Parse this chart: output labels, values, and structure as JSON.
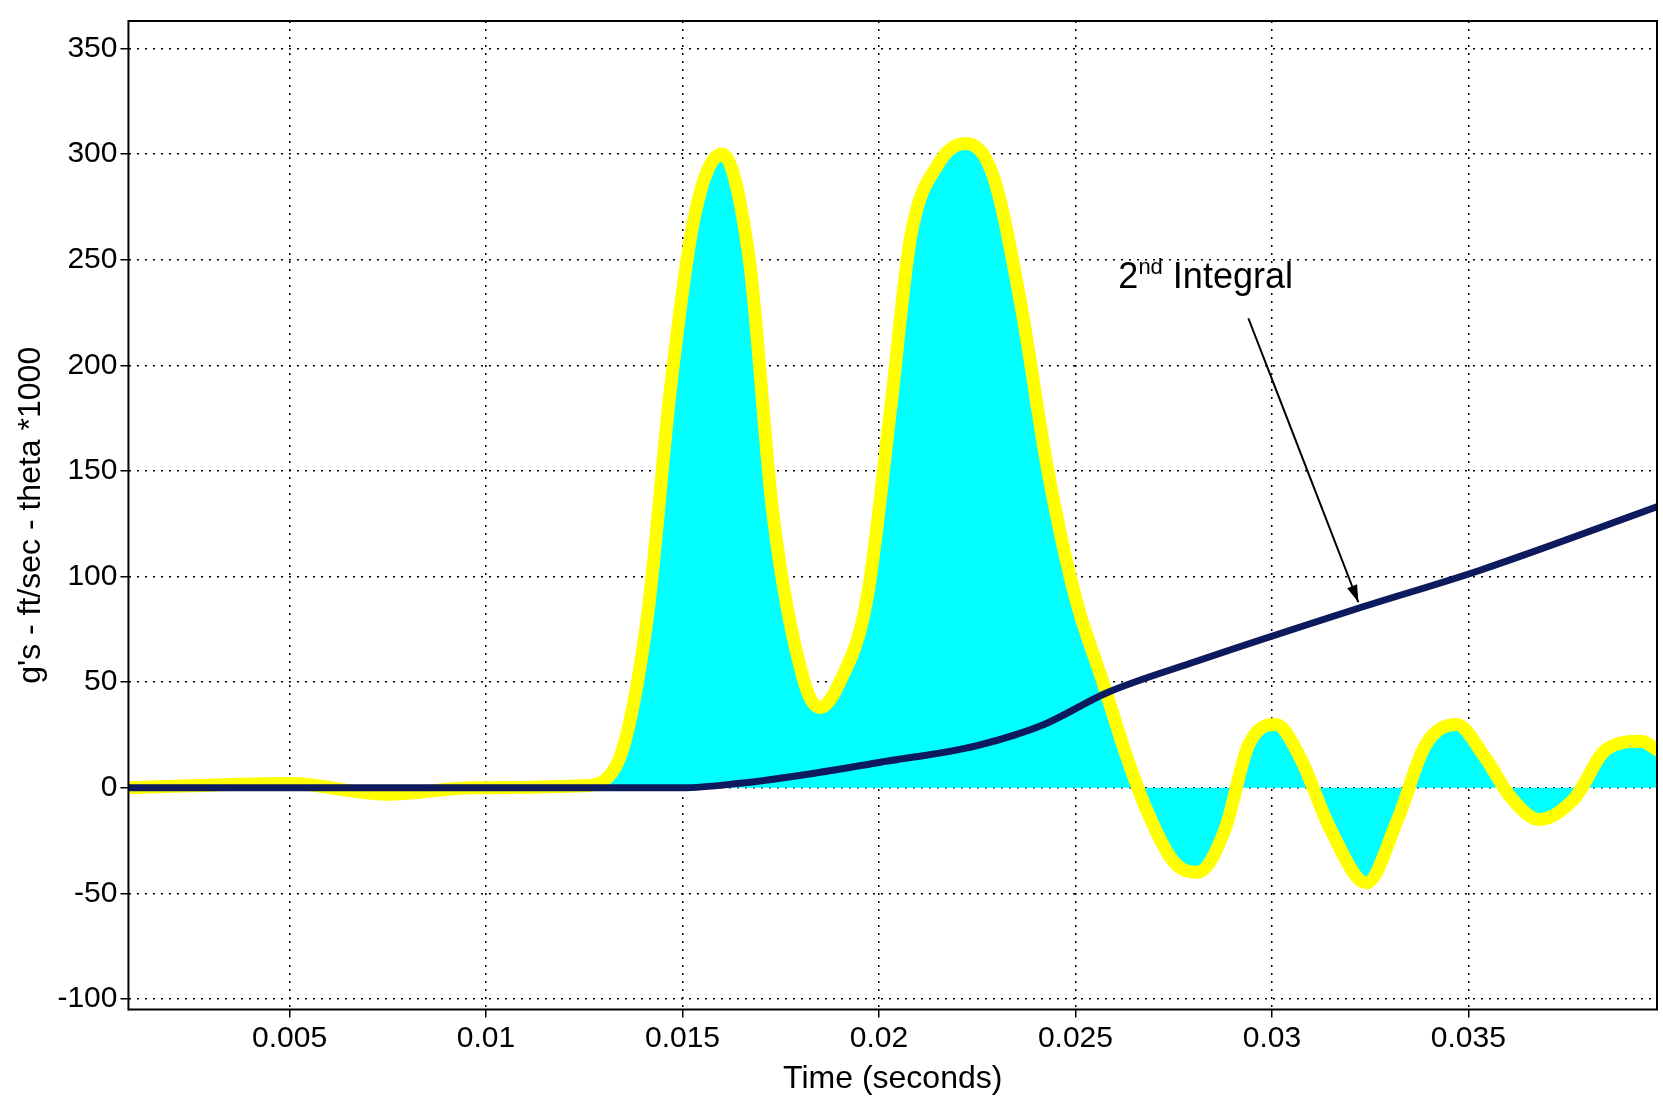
{
  "chart_data": {
    "type": "area",
    "xlabel": "Time (seconds)",
    "ylabel": "g's - ft/sec - theta *1000",
    "xlim": [
      0.0009,
      0.0398
    ],
    "xticks": [
      0.005,
      0.01,
      0.015,
      0.02,
      0.025,
      0.03,
      0.035
    ],
    "ylim": [
      -105,
      363
    ],
    "yticks": [
      -100,
      -50,
      0,
      50,
      100,
      150,
      200,
      250,
      300,
      350
    ],
    "grid": true,
    "legend": false,
    "series": [
      {
        "color": "#00ffff",
        "x": [
          0.0009,
          0.005,
          0.00745,
          0.0097,
          0.0125,
          0.0133,
          0.0141,
          0.0147,
          0.0153,
          0.016,
          0.0167,
          0.0173,
          0.0181,
          0.0185,
          0.019,
          0.0197,
          0.0203,
          0.0208,
          0.0215,
          0.0222,
          0.0229,
          0.0236,
          0.0243,
          0.025,
          0.0257,
          0.0263,
          0.0268,
          0.0275,
          0.0281,
          0.0288,
          0.0294,
          0.0301,
          0.0307,
          0.0315,
          0.0324,
          0.0332,
          0.0339,
          0.0347,
          0.0354,
          0.0361,
          0.0368,
          0.0377,
          0.0385,
          0.0394,
          0.0398
        ],
        "values": [
          0,
          2,
          -3,
          0,
          1,
          10,
          80,
          190,
          270,
          300,
          250,
          130,
          50,
          38,
          50,
          90,
          180,
          260,
          295,
          305,
          290,
          230,
          150,
          90,
          50,
          15,
          -10,
          -35,
          -40,
          -20,
          20,
          30,
          15,
          -20,
          -45,
          -15,
          20,
          30,
          15,
          -5,
          -15,
          -5,
          18,
          22,
          18
        ]
      },
      {
        "type": "line",
        "color": "#0d1b5e",
        "x": [
          0.0009,
          0.015,
          0.0164,
          0.0184,
          0.02,
          0.0225,
          0.0242,
          0.0258,
          0.0281,
          0.0322,
          0.0353,
          0.0398
        ],
        "values": [
          0,
          0,
          2,
          7,
          12,
          20,
          30,
          45,
          60,
          85,
          103,
          133
        ]
      }
    ],
    "annotations": [
      {
        "text": "2$^{nd}$ Integral",
        "x": 0.0322,
        "y": 85
      }
    ]
  }
}
